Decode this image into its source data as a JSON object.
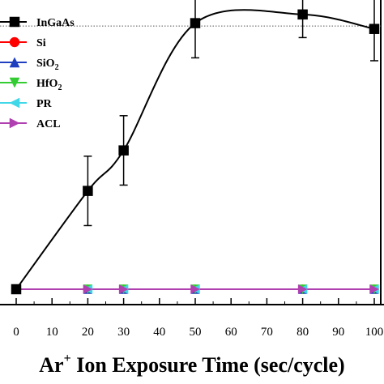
{
  "chart_data": {
    "type": "line",
    "xlabel_main": "Ar",
    "xlabel_sup": "+",
    "xlabel_rest": " Ion Exposure Time (sec/cycle)",
    "xlim": [
      0,
      100
    ],
    "xticks": [
      "0",
      "10",
      "20",
      "30",
      "40",
      "50",
      "60",
      "70",
      "80",
      "90",
      "100"
    ],
    "ylim": [
      0,
      1.0
    ],
    "reference_line_y": 0.91,
    "grid": false,
    "legend_position": "top-left",
    "series": [
      {
        "name": "InGaAs",
        "color": "#000000",
        "marker": "square",
        "x": [
          0,
          20,
          30,
          50,
          80,
          100
        ],
        "y": [
          0.0,
          0.34,
          0.48,
          0.92,
          0.95,
          0.9
        ],
        "yerr": [
          0,
          0.12,
          0.12,
          0.12,
          0.08,
          0.11
        ],
        "smooth_fit": true
      },
      {
        "name": "Si",
        "name_sub": "",
        "color": "#ff0000",
        "marker": "circle",
        "x": [
          0,
          20,
          30,
          50,
          80,
          100
        ],
        "y": [
          0,
          0,
          0,
          0,
          0,
          0
        ]
      },
      {
        "name": "SiO",
        "name_sub": "2",
        "color": "#1f3fbf",
        "marker": "triangle-up",
        "x": [
          0,
          20,
          30,
          50,
          80,
          100
        ],
        "y": [
          0,
          0,
          0,
          0,
          0,
          0
        ]
      },
      {
        "name": "HfO",
        "name_sub": "2",
        "color": "#33cc33",
        "marker": "triangle-down",
        "x": [
          0,
          20,
          30,
          50,
          80,
          100
        ],
        "y": [
          0,
          0,
          0,
          0,
          0,
          0
        ]
      },
      {
        "name": "PR",
        "name_sub": "",
        "color": "#40d8e8",
        "marker": "triangle-left",
        "x": [
          0,
          20,
          30,
          50,
          80,
          100
        ],
        "y": [
          0,
          0,
          0,
          0,
          0,
          0
        ]
      },
      {
        "name": "ACL",
        "name_sub": "",
        "color": "#b040b0",
        "marker": "triangle-right",
        "x": [
          0,
          20,
          30,
          50,
          80,
          100
        ],
        "y": [
          0,
          0,
          0,
          0,
          0,
          0
        ]
      }
    ]
  }
}
